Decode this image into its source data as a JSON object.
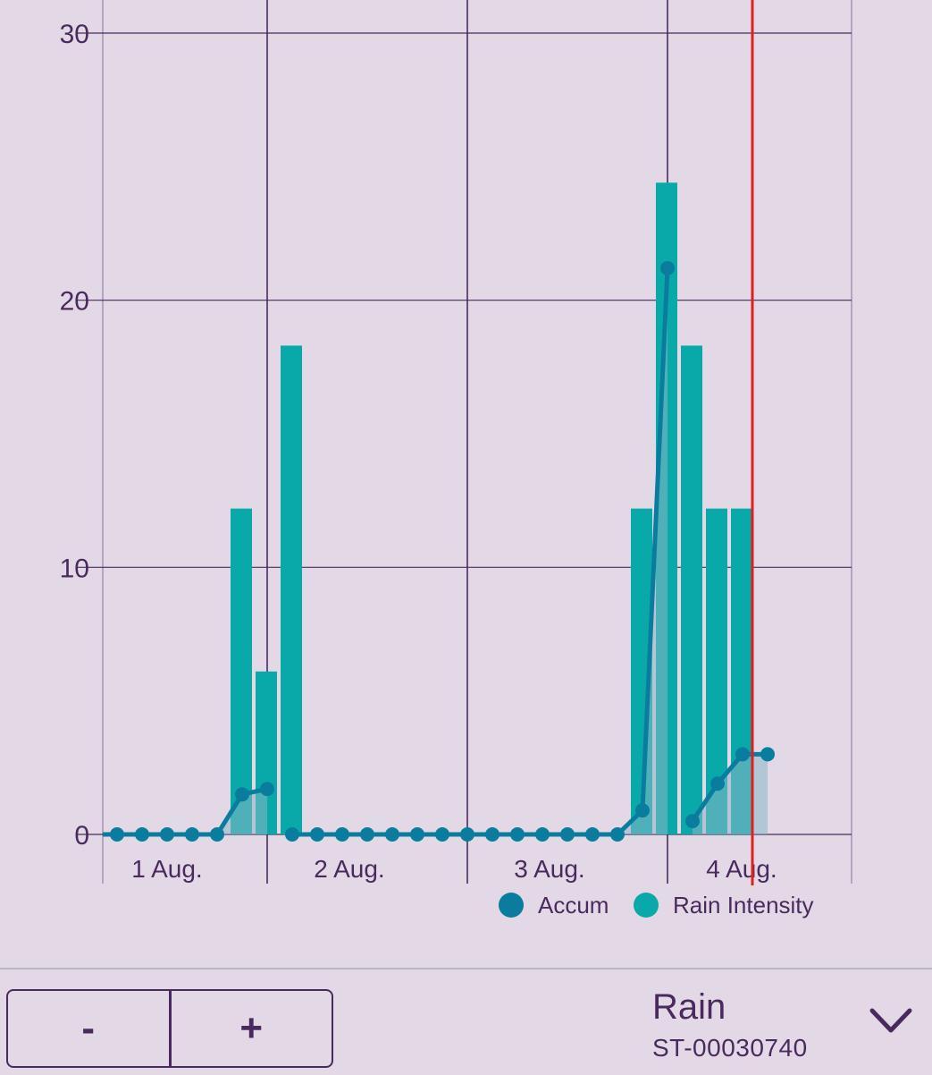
{
  "chart_data": {
    "type": "bar+line",
    "y_ticks": [
      "0",
      "10",
      "20",
      "30"
    ],
    "ylim": [
      0,
      30
    ],
    "x_ticks": [
      "1 Aug.",
      "2 Aug.",
      "3 Aug.",
      "4 Aug."
    ],
    "legend": [
      {
        "label": "Accum",
        "color": "#0a7d9e"
      },
      {
        "label": "Rain Intensity",
        "color": "#0aa9a9"
      }
    ],
    "legend_position": "bottom-right",
    "grid": true,
    "now_marker_color": "#e02020",
    "bars": {
      "name": "Rain Intensity",
      "color": "#0aa9a9",
      "slots": [
        5,
        6,
        7,
        21,
        22,
        23,
        24,
        25
      ],
      "values": [
        12.2,
        6.1,
        18.3,
        12.2,
        24.4,
        18.3,
        12.2,
        12.2
      ]
    },
    "accum_segments": [
      {
        "slots": [
          0,
          1,
          2,
          3,
          4,
          5,
          6
        ],
        "values": [
          0,
          0,
          0,
          0,
          0,
          1.5,
          1.7
        ]
      },
      {
        "slots": [
          7,
          8,
          9,
          10,
          11,
          12,
          13,
          14,
          15,
          16,
          17,
          18,
          19,
          20,
          21,
          22
        ],
        "values": [
          0,
          0,
          0,
          0,
          0,
          0,
          0,
          0,
          0,
          0,
          0,
          0,
          0,
          0,
          0.9,
          21.2
        ]
      },
      {
        "slots": [
          23,
          24,
          25,
          26
        ],
        "values": [
          0.5,
          1.9,
          3.0,
          3.0
        ]
      }
    ]
  },
  "controls": {
    "minus_label": "-",
    "plus_label": "+",
    "selector_title": "Rain",
    "selector_subtitle": "ST-00030740",
    "chevron_icon": "chevron-down-icon"
  }
}
